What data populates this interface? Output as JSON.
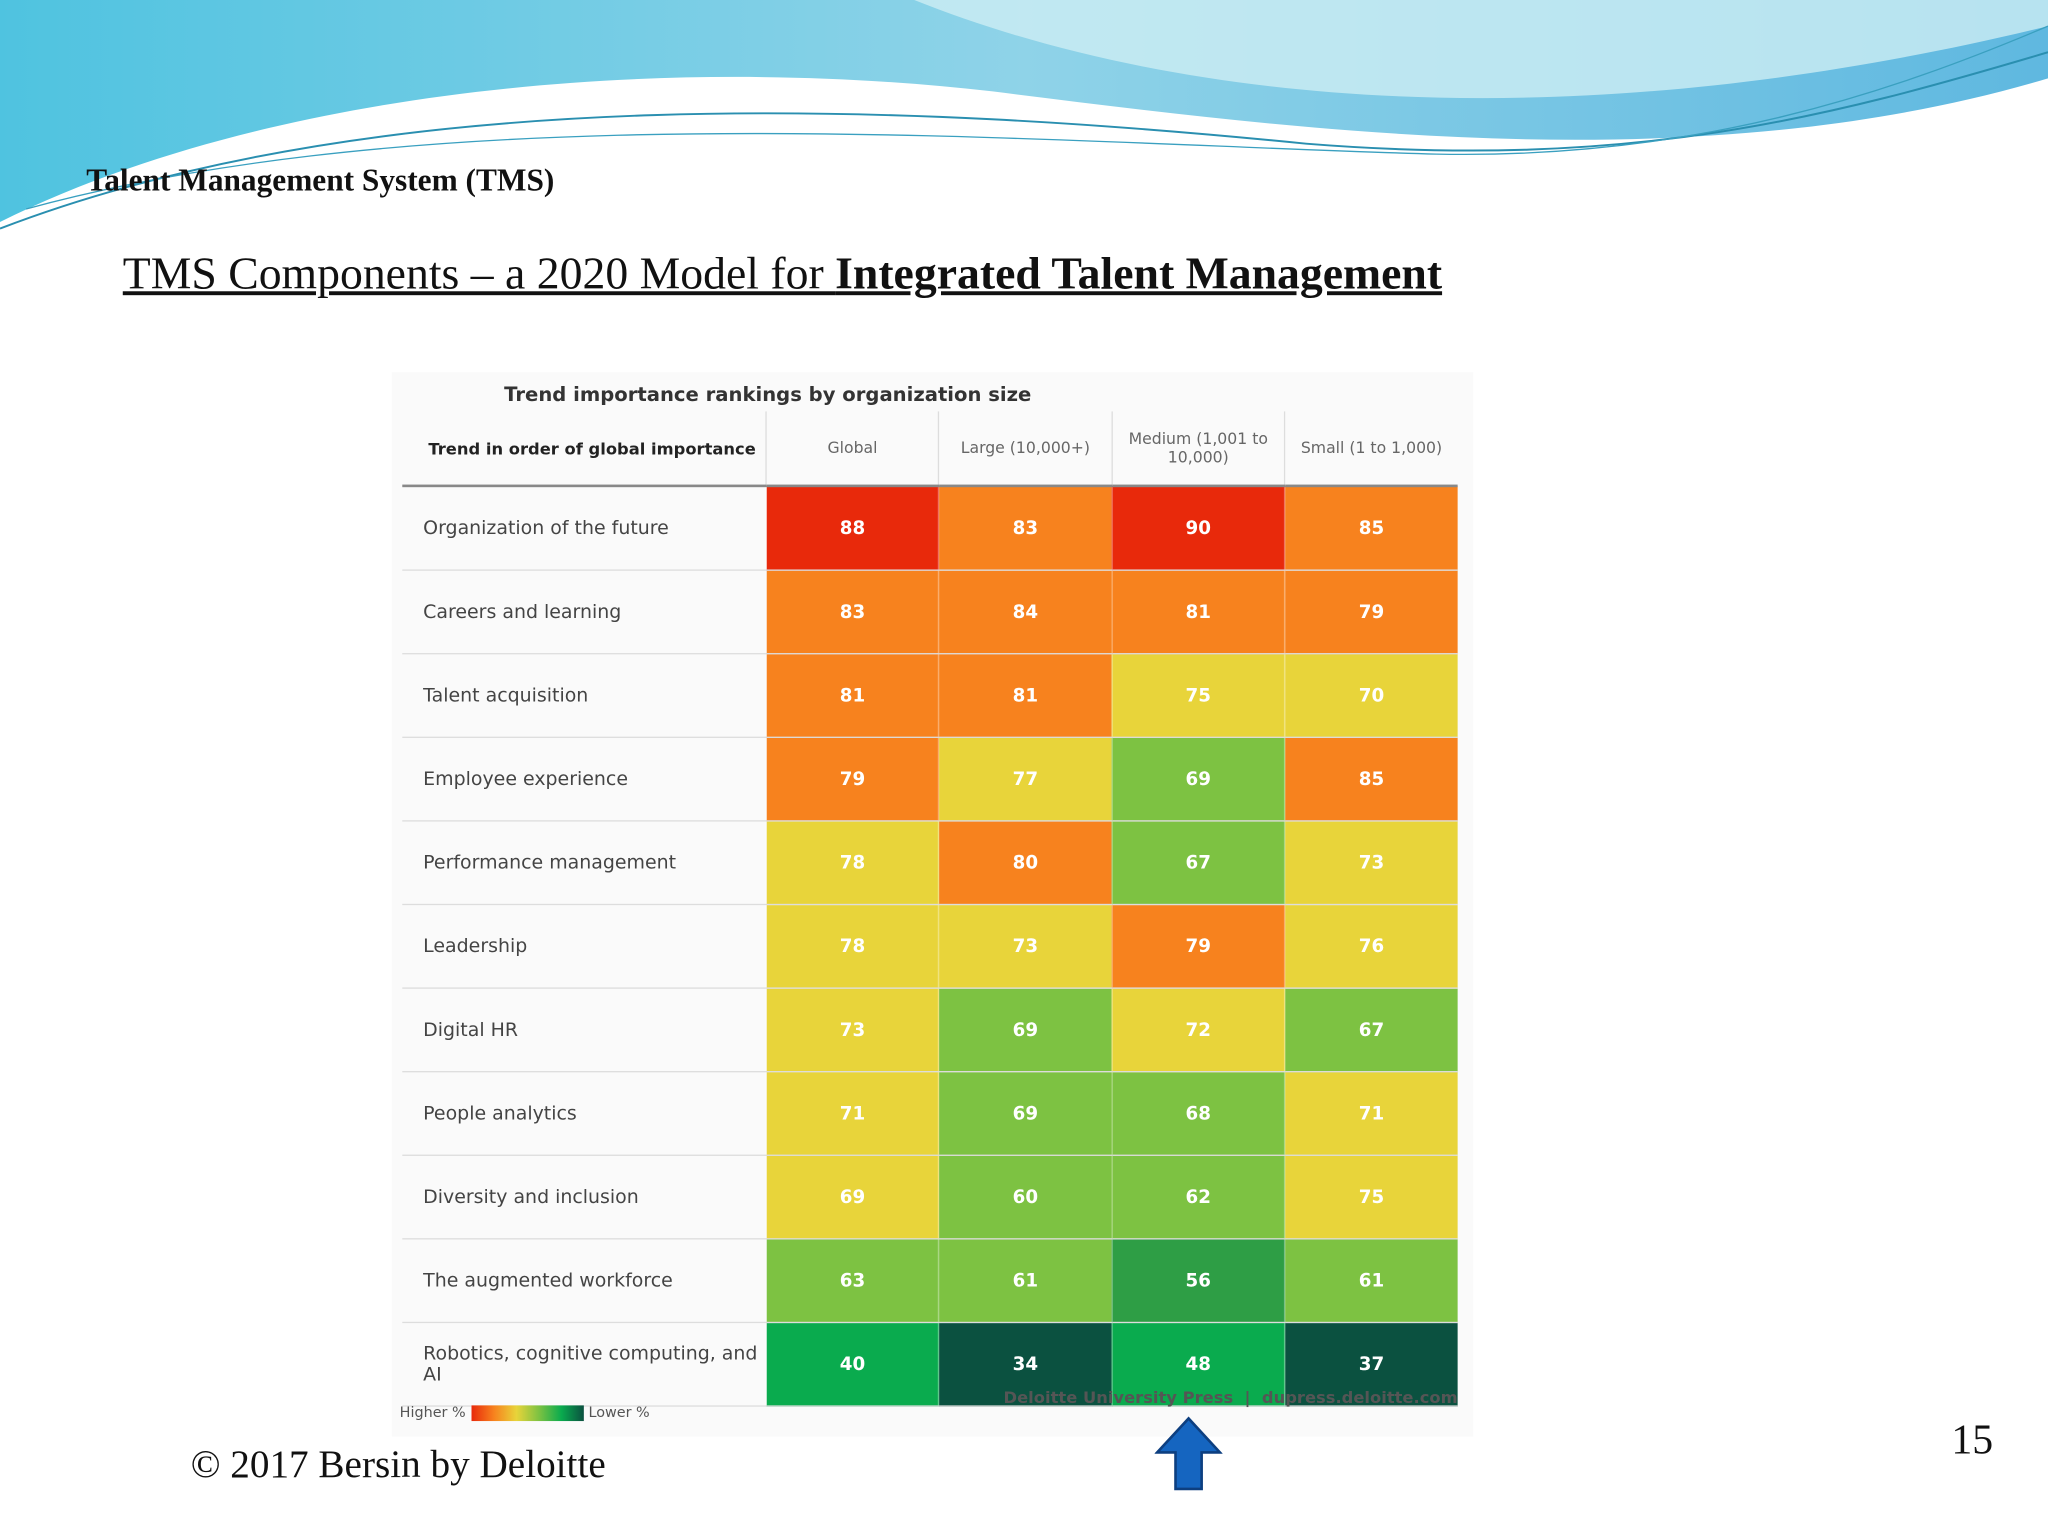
{
  "header": {
    "section": "Talent Management System (TMS)",
    "title_plain": "TMS Components – a 2020 Model for ",
    "title_bold": "Integrated Talent Management"
  },
  "table": {
    "title": "Trend importance rankings by organization size",
    "columns": [
      "Trend in order of global importance",
      "Global",
      "Large (10,000+)",
      "Medium (1,001 to 10,000)",
      "Small (1 to 1,000)"
    ],
    "rows": [
      {
        "label": "Organization of the future",
        "values": [
          88,
          83,
          90,
          85
        ],
        "colors": [
          "#e8290b",
          "#f7821e",
          "#e8290b",
          "#f7821e"
        ]
      },
      {
        "label": "Careers and learning",
        "values": [
          83,
          84,
          81,
          79
        ],
        "colors": [
          "#f7821e",
          "#f7821e",
          "#f7821e",
          "#f7821e"
        ]
      },
      {
        "label": "Talent acquisition",
        "values": [
          81,
          81,
          75,
          70
        ],
        "colors": [
          "#f7821e",
          "#f7821e",
          "#e8d43a",
          "#e8d43a"
        ]
      },
      {
        "label": "Employee experience",
        "values": [
          79,
          77,
          69,
          85
        ],
        "colors": [
          "#f7821e",
          "#e8d43a",
          "#7dc242",
          "#f7821e"
        ]
      },
      {
        "label": "Performance management",
        "values": [
          78,
          80,
          67,
          73
        ],
        "colors": [
          "#e8d43a",
          "#f7821e",
          "#7dc242",
          "#e8d43a"
        ]
      },
      {
        "label": "Leadership",
        "values": [
          78,
          73,
          79,
          76
        ],
        "colors": [
          "#e8d43a",
          "#e8d43a",
          "#f7821e",
          "#e8d43a"
        ]
      },
      {
        "label": "Digital HR",
        "values": [
          73,
          69,
          72,
          67
        ],
        "colors": [
          "#e8d43a",
          "#7dc242",
          "#e8d43a",
          "#7dc242"
        ]
      },
      {
        "label": "People analytics",
        "values": [
          71,
          69,
          68,
          71
        ],
        "colors": [
          "#e8d43a",
          "#7dc242",
          "#7dc242",
          "#e8d43a"
        ]
      },
      {
        "label": "Diversity and inclusion",
        "values": [
          69,
          60,
          62,
          75
        ],
        "colors": [
          "#e8d43a",
          "#7dc242",
          "#7dc242",
          "#e8d43a"
        ]
      },
      {
        "label": "The augmented workforce",
        "values": [
          63,
          61,
          56,
          61
        ],
        "colors": [
          "#7dc242",
          "#7dc242",
          "#2e9e45",
          "#7dc242"
        ]
      },
      {
        "label": "Robotics, cognitive computing, and AI",
        "values": [
          40,
          34,
          48,
          37
        ],
        "colors": [
          "#0aab4e",
          "#0b5140",
          "#0aab4e",
          "#0b5140"
        ]
      }
    ],
    "legend": {
      "higher": "Higher %",
      "lower": "Lower %"
    },
    "source": {
      "publisher": "Deloitte University Press",
      "url": "dupress.deloitte.com"
    }
  },
  "footer": {
    "copyright": "© 2017 Bersin by Deloitte",
    "page_number": 15
  }
}
